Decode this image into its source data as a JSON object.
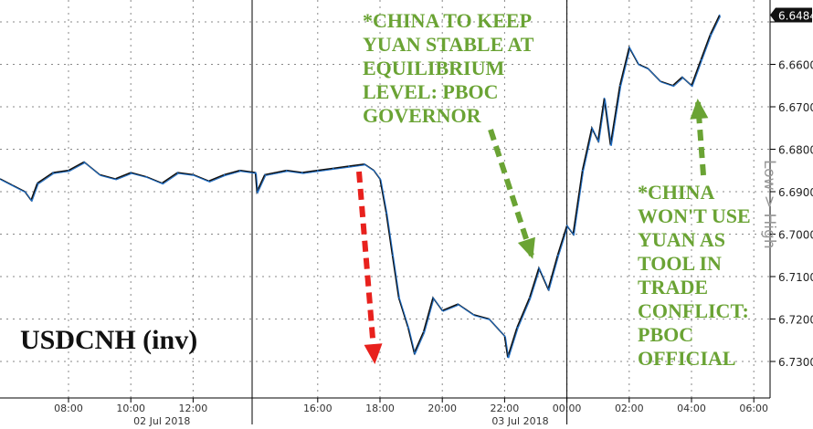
{
  "chart_data": {
    "type": "line",
    "title": "USDCNH (inv)",
    "ylabel": "Low > High",
    "y_inverted": true,
    "ylim": [
      6.647,
      6.734
    ],
    "yticks": [
      "6.6500",
      "6.6600",
      "6.6700",
      "6.6800",
      "6.6900",
      "6.7000",
      "6.7100",
      "6.7200",
      "6.7300"
    ],
    "last_value_label": "6.6484",
    "xlabel_hours_from": "02 Jul 2018 00:00",
    "xlim": [
      5.8,
      31.0
    ],
    "xticks": [
      {
        "h": 8,
        "label": "08:00"
      },
      {
        "h": 10,
        "label": "10:00"
      },
      {
        "h": 12,
        "label": "12:00"
      },
      {
        "h": 16,
        "label": "16:00"
      },
      {
        "h": 18,
        "label": "18:00"
      },
      {
        "h": 20,
        "label": "20:00"
      },
      {
        "h": 22,
        "label": "22:00"
      },
      {
        "h": 24,
        "label": "00:00"
      },
      {
        "h": 26,
        "label": "02:00"
      },
      {
        "h": 28,
        "label": "04:00"
      },
      {
        "h": 30,
        "label": "06:00"
      }
    ],
    "date_labels": [
      {
        "h": 11,
        "label": "02 Jul 2018"
      },
      {
        "h": 22.5,
        "label": "03 Jul 2018"
      }
    ],
    "series": [
      {
        "name": "USDCNH",
        "x": [
          5.8,
          6.2,
          6.6,
          6.8,
          7.0,
          7.5,
          8,
          8.5,
          9,
          9.5,
          10,
          10.5,
          11,
          11.5,
          12,
          12.5,
          13,
          13.5,
          14,
          14.05,
          14.3,
          15,
          15.5,
          16,
          16.5,
          17,
          17.5,
          17.8,
          18,
          18.2,
          18.4,
          18.6,
          18.9,
          19.1,
          19.4,
          19.7,
          20,
          20.5,
          21,
          21.5,
          22,
          22.1,
          22.4,
          22.8,
          23.1,
          23.4,
          23.7,
          24,
          24.2,
          24.5,
          24.8,
          25.0,
          25.2,
          25.4,
          25.7,
          26,
          26.3,
          26.6,
          27,
          27.4,
          27.7,
          28,
          28.3,
          28.6,
          28.9
        ],
        "y": [
          6.687,
          6.6885,
          6.69,
          6.692,
          6.688,
          6.6855,
          6.685,
          6.683,
          6.686,
          6.687,
          6.6855,
          6.6865,
          6.688,
          6.6855,
          6.686,
          6.6875,
          6.686,
          6.685,
          6.6855,
          6.69,
          6.686,
          6.685,
          6.6855,
          6.685,
          6.6845,
          6.684,
          6.6835,
          6.685,
          6.687,
          6.695,
          6.705,
          6.715,
          6.722,
          6.728,
          6.723,
          6.715,
          6.718,
          6.7165,
          6.719,
          6.72,
          6.724,
          6.729,
          6.722,
          6.715,
          6.708,
          6.713,
          6.705,
          6.698,
          6.7,
          6.685,
          6.675,
          6.678,
          6.668,
          6.679,
          6.665,
          6.656,
          6.66,
          6.661,
          6.664,
          6.665,
          6.663,
          6.665,
          6.659,
          6.653,
          6.6484
        ]
      }
    ],
    "annotations": [
      {
        "text": "*CHINA TO KEEP\nYUAN STABLE AT\nEQUILIBRIUM\nLEVEL: PBOC\nGOVERNOR",
        "color": "#6aa334"
      },
      {
        "text": "*CHINA\nWON'T USE\nYUAN AS\nTOOL IN\nTRADE\nCONFLICT:\nPBOC\nOFFICIAL",
        "color": "#6aa334"
      }
    ],
    "colors": {
      "line": "#1f6fc8",
      "line_dark": "#111111",
      "red_arrow": "#e8211d",
      "green_arrow": "#6aa334"
    }
  }
}
